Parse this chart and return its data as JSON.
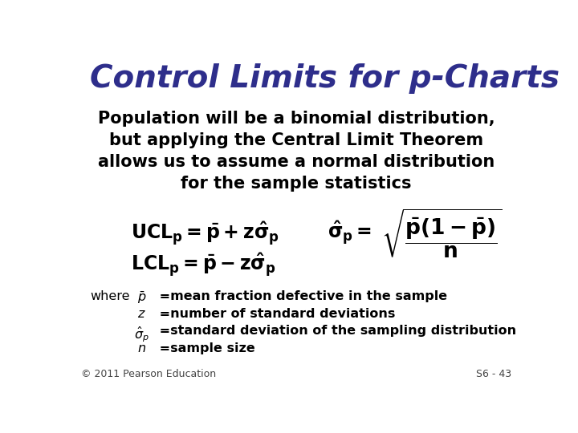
{
  "title": "Control Limits for p-Charts",
  "title_color": "#2E2E8B",
  "title_fontsize": 28,
  "bg_color": "#FFFFFF",
  "body_text_color": "#000000",
  "subtitle_lines": [
    "Population will be a binomial distribution,",
    "but applying the Central Limit Theorem",
    "allows us to assume a normal distribution",
    "for the sample statistics"
  ],
  "subtitle_fontsize": 15,
  "ucl_formula": "$\\mathbf{UCL_p = \\bar{p} + z\\hat{\\sigma}_p}$",
  "lcl_formula": "$\\mathbf{LCL_p = \\bar{p} - z\\hat{\\sigma}_p}$",
  "sigma_lhs": "$\\mathbf{\\hat{\\sigma}_p =}$",
  "sigma_rhs": "$\\mathbf{\\sqrt{\\dfrac{\\bar{p}(1 - \\bar{p})}{n}}}$",
  "formula_fontsize": 17,
  "sigma_fontsize": 16,
  "where_text": "where",
  "where_items": [
    [
      "$\\bar{p}$",
      " =mean fraction defective in the sample"
    ],
    [
      "$z$",
      " =number of standard deviations"
    ],
    [
      "$\\hat{\\sigma}_p$",
      " =standard deviation of the sampling distribution"
    ],
    [
      "$n$",
      " =sample size"
    ]
  ],
  "where_fontsize": 11.5,
  "footer_left": "© 2011 Pearson Education",
  "footer_right": "S6 - 43",
  "footer_fontsize": 9
}
